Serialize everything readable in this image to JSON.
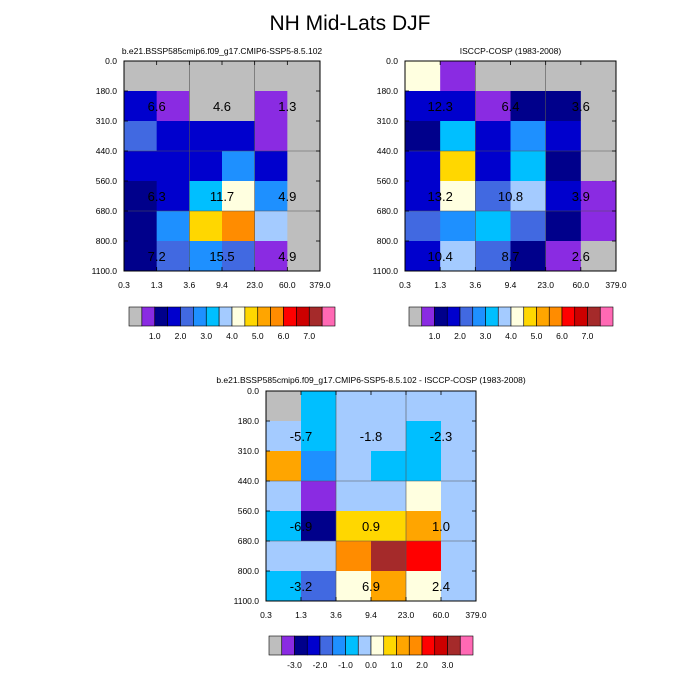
{
  "title": "NH Mid-Lats DJF",
  "chart_data": [
    {
      "type": "heatmap",
      "title": "b.e21.BSSP585cmip6.f09_g17.CMIP6-SSP5-8.5.102",
      "x_edges": [
        "0.3",
        "1.3",
        "3.6",
        "9.4",
        "23.0",
        "60.0",
        "379.0"
      ],
      "y_edges": [
        "0.0",
        "180.0",
        "310.0",
        "440.0",
        "560.0",
        "680.0",
        "800.0",
        "1100.0"
      ],
      "colors": [
        [
          "#BEBEBE",
          "#BEBEBE",
          "#BEBEBE",
          "#BEBEBE",
          "#BEBEBE",
          "#BEBEBE"
        ],
        [
          "#0000CD",
          "#8A2BE2",
          "#BEBEBE",
          "#BEBEBE",
          "#8A2BE2",
          "#BEBEBE"
        ],
        [
          "#4169E1",
          "#0000CD",
          "#0000CD",
          "#0000CD",
          "#8A2BE2",
          "#BEBEBE"
        ],
        [
          "#0000CD",
          "#0000CD",
          "#0000CD",
          "#1E90FF",
          "#0000CD",
          "#BEBEBE"
        ],
        [
          "#00008B",
          "#0000CD",
          "#00BFFF",
          "#FFFFE0",
          "#1E90FF",
          "#BEBEBE"
        ],
        [
          "#00008B",
          "#1E90FF",
          "#FFD700",
          "#FF8C00",
          "#A4CBFF",
          "#BEBEBE"
        ],
        [
          "#00008B",
          "#4169E1",
          "#1E90FF",
          "#4169E1",
          "#8A2BE2",
          "#BEBEBE"
        ]
      ],
      "annotations": [
        {
          "col": 0.5,
          "row": 1,
          "text": "6.6"
        },
        {
          "col": 2.5,
          "row": 1,
          "text": "4.6"
        },
        {
          "col": 4.5,
          "row": 1,
          "text": "1.3"
        },
        {
          "col": 0.5,
          "row": 4,
          "text": "6.3"
        },
        {
          "col": 2.5,
          "row": 4,
          "text": "11.7"
        },
        {
          "col": 4.5,
          "row": 4,
          "text": "4.9"
        },
        {
          "col": 0.5,
          "row": 6,
          "text": "7.2"
        },
        {
          "col": 2.5,
          "row": 6,
          "text": "15.5"
        },
        {
          "col": 4.5,
          "row": 6,
          "text": "4.9"
        }
      ],
      "colorbar": {
        "colors": [
          "#BEBEBE",
          "#8A2BE2",
          "#00008B",
          "#0000CD",
          "#4169E1",
          "#1E90FF",
          "#00BFFF",
          "#A4CBFF",
          "#FFFFE0",
          "#FFD700",
          "#FFA500",
          "#FF8C00",
          "#FF0000",
          "#CD0000",
          "#A52A2A",
          "#FF69B4"
        ],
        "labels": [
          "1.0",
          "2.0",
          "3.0",
          "4.0",
          "5.0",
          "6.0",
          "7.0"
        ]
      }
    },
    {
      "type": "heatmap",
      "title": "ISCCP-COSP (1983-2008)",
      "x_edges": [
        "0.3",
        "1.3",
        "3.6",
        "9.4",
        "23.0",
        "60.0",
        "379.0"
      ],
      "y_edges": [
        "0.0",
        "180.0",
        "310.0",
        "440.0",
        "560.0",
        "680.0",
        "800.0",
        "1100.0"
      ],
      "colors": [
        [
          "#FFFFE0",
          "#8A2BE2",
          "#BEBEBE",
          "#BEBEBE",
          "#BEBEBE",
          "#BEBEBE"
        ],
        [
          "#0000CD",
          "#0000CD",
          "#8A2BE2",
          "#00008B",
          "#00008B",
          "#BEBEBE"
        ],
        [
          "#00008B",
          "#00BFFF",
          "#0000CD",
          "#1E90FF",
          "#0000CD",
          "#BEBEBE"
        ],
        [
          "#0000CD",
          "#FFD700",
          "#0000CD",
          "#00BFFF",
          "#00008B",
          "#BEBEBE"
        ],
        [
          "#0000CD",
          "#FFFFE0",
          "#4169E1",
          "#A4CBFF",
          "#0000CD",
          "#8A2BE2"
        ],
        [
          "#4169E1",
          "#1E90FF",
          "#00BFFF",
          "#4169E1",
          "#00008B",
          "#8A2BE2"
        ],
        [
          "#0000CD",
          "#A4CBFF",
          "#4169E1",
          "#00008B",
          "#8A2BE2",
          "#BEBEBE"
        ]
      ],
      "annotations": [
        {
          "col": 0.5,
          "row": 1,
          "text": "12.3"
        },
        {
          "col": 2.5,
          "row": 1,
          "text": "6.4"
        },
        {
          "col": 4.5,
          "row": 1,
          "text": "3.6"
        },
        {
          "col": 0.5,
          "row": 4,
          "text": "13.2"
        },
        {
          "col": 2.5,
          "row": 4,
          "text": "10.8"
        },
        {
          "col": 4.5,
          "row": 4,
          "text": "3.9"
        },
        {
          "col": 0.5,
          "row": 6,
          "text": "10.4"
        },
        {
          "col": 2.5,
          "row": 6,
          "text": "8.7"
        },
        {
          "col": 4.5,
          "row": 6,
          "text": "2.6"
        }
      ],
      "colorbar": {
        "colors": [
          "#BEBEBE",
          "#8A2BE2",
          "#00008B",
          "#0000CD",
          "#4169E1",
          "#1E90FF",
          "#00BFFF",
          "#A4CBFF",
          "#FFFFE0",
          "#FFD700",
          "#FFA500",
          "#FF8C00",
          "#FF0000",
          "#CD0000",
          "#A52A2A",
          "#FF69B4"
        ],
        "labels": [
          "1.0",
          "2.0",
          "3.0",
          "4.0",
          "5.0",
          "6.0",
          "7.0"
        ]
      }
    },
    {
      "type": "heatmap",
      "title": "b.e21.BSSP585cmip6.f09_g17.CMIP6-SSP5-8.5.102 - ISCCP-COSP (1983-2008)",
      "x_edges": [
        "0.3",
        "1.3",
        "3.6",
        "9.4",
        "23.0",
        "60.0",
        "379.0"
      ],
      "y_edges": [
        "0.0",
        "180.0",
        "310.0",
        "440.0",
        "560.0",
        "680.0",
        "800.0",
        "1100.0"
      ],
      "colors": [
        [
          "#BEBEBE",
          "#00BFFF",
          "#A4CBFF",
          "#A4CBFF",
          "#A4CBFF",
          "#A4CBFF"
        ],
        [
          "#A4CBFF",
          "#00BFFF",
          "#A4CBFF",
          "#A4CBFF",
          "#00BFFF",
          "#A4CBFF"
        ],
        [
          "#FFA500",
          "#1E90FF",
          "#A4CBFF",
          "#00BFFF",
          "#00BFFF",
          "#A4CBFF"
        ],
        [
          "#A4CBFF",
          "#8A2BE2",
          "#A4CBFF",
          "#A4CBFF",
          "#FFFFE0",
          "#A4CBFF"
        ],
        [
          "#00BFFF",
          "#00008B",
          "#FFD700",
          "#FFD700",
          "#FFA500",
          "#A4CBFF"
        ],
        [
          "#A4CBFF",
          "#A4CBFF",
          "#FF8C00",
          "#A52A2A",
          "#FF0000",
          "#A4CBFF"
        ],
        [
          "#00BFFF",
          "#4169E1",
          "#FFFFE0",
          "#FFA500",
          "#FFFFE0",
          "#A4CBFF"
        ]
      ],
      "annotations": [
        {
          "col": 0.5,
          "row": 1,
          "text": "-5.7"
        },
        {
          "col": 2.5,
          "row": 1,
          "text": "-1.8"
        },
        {
          "col": 4.5,
          "row": 1,
          "text": "-2.3"
        },
        {
          "col": 0.5,
          "row": 4,
          "text": "-6.9"
        },
        {
          "col": 2.5,
          "row": 4,
          "text": "0.9"
        },
        {
          "col": 4.5,
          "row": 4,
          "text": "1.0"
        },
        {
          "col": 0.5,
          "row": 6,
          "text": "-3.2"
        },
        {
          "col": 2.5,
          "row": 6,
          "text": "6.9"
        },
        {
          "col": 4.5,
          "row": 6,
          "text": "2.4"
        }
      ],
      "colorbar": {
        "colors": [
          "#BEBEBE",
          "#8A2BE2",
          "#00008B",
          "#0000CD",
          "#4169E1",
          "#1E90FF",
          "#00BFFF",
          "#A4CBFF",
          "#FFFFE0",
          "#FFD700",
          "#FFA500",
          "#FF8C00",
          "#FF0000",
          "#CD0000",
          "#A52A2A",
          "#FF69B4"
        ],
        "labels": [
          "-3.0",
          "-2.0",
          "-1.0",
          "0.0",
          "1.0",
          "2.0",
          "3.0"
        ]
      }
    }
  ]
}
